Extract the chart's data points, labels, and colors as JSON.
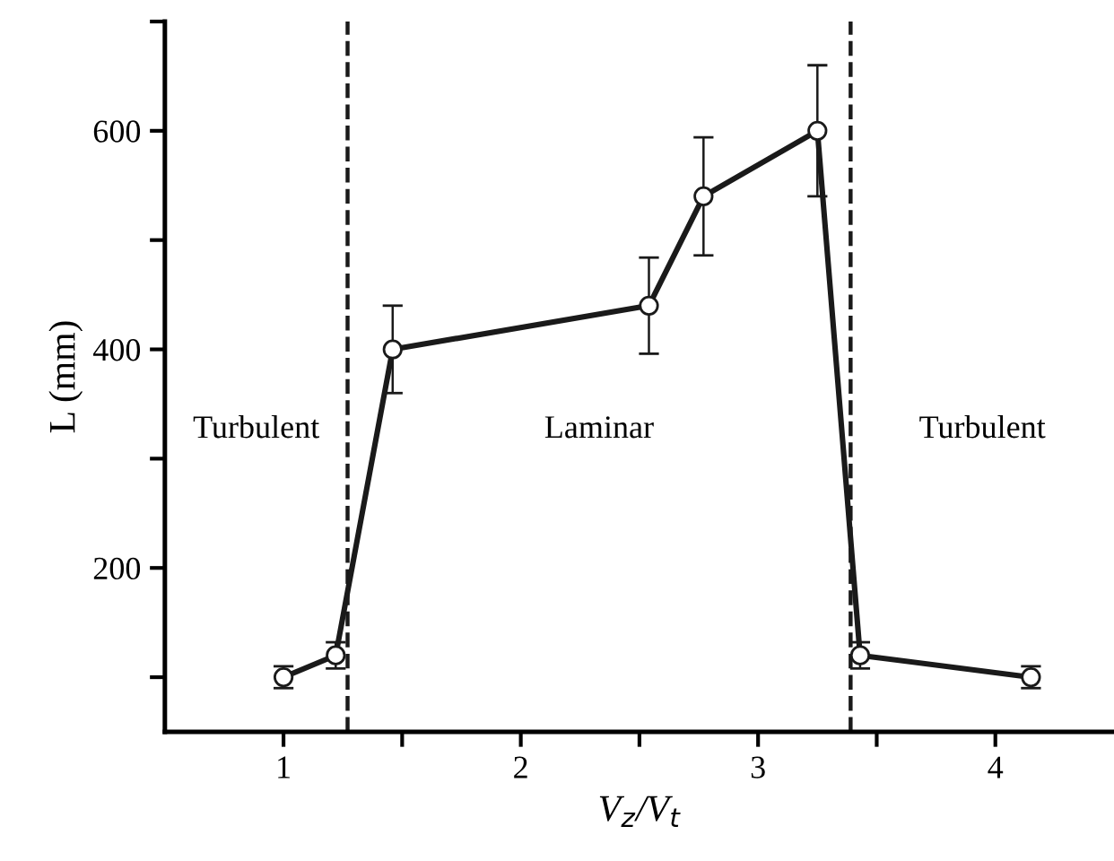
{
  "chart_data": {
    "type": "line",
    "xlabel": "V$_{z}$/V$_{t}$",
    "ylabel": "L (mm)",
    "x": [
      1.0,
      1.22,
      1.46,
      2.54,
      2.77,
      3.25,
      3.43,
      4.15
    ],
    "series": [
      {
        "color": "#1a1a1a",
        "values": [
          100,
          120,
          400,
          440,
          540,
          600,
          120,
          100
        ],
        "errors": [
          10,
          12,
          40,
          44,
          54,
          60,
          12,
          10
        ]
      }
    ],
    "xlim": [
      0.5,
      4.5
    ],
    "ylim": [
      50,
      700
    ],
    "xticks": [
      1,
      {
        "value": 1.5,
        "label": null
      },
      2,
      {
        "value": 2.5,
        "label": null
      },
      3,
      {
        "value": 3.5,
        "label": null
      },
      4
    ],
    "yticks": [
      {
        "value": 100,
        "label": null
      },
      200,
      {
        "value": 300,
        "label": null
      },
      400,
      {
        "value": 500,
        "label": null
      },
      600,
      {
        "value": 700,
        "label": null
      }
    ],
    "ref_lines": [
      {
        "axis": "x",
        "value": 1.27,
        "line_style": "dashed",
        "color": "#1a1a1a"
      },
      {
        "axis": "x",
        "value": 3.39,
        "line_style": "dashed",
        "color": "#1a1a1a"
      }
    ],
    "annotations": [
      "Turbulent",
      "Laminar",
      "Turbulent"
    ],
    "marker": "circle",
    "line_style": "solid",
    "grid": false,
    "legend": false
  }
}
